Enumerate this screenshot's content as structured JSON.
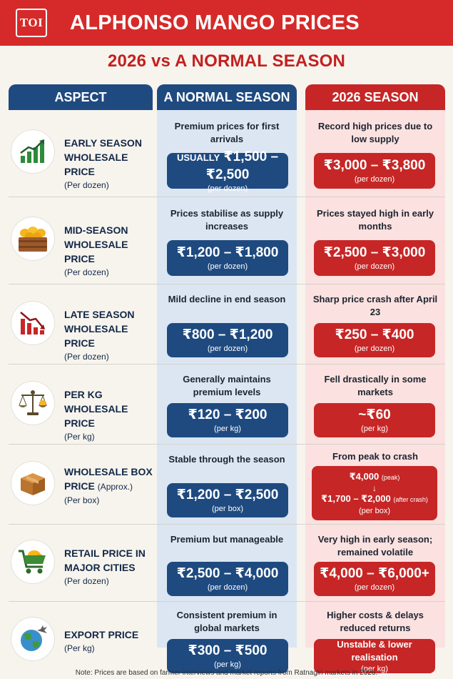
{
  "header": {
    "logo_text": "TOI",
    "title": "ALPHONSO MANGO PRICES",
    "subtitle": "2026 vs A NORMAL SEASON"
  },
  "columns": {
    "aspect": "ASPECT",
    "normal": "A NORMAL SEASON",
    "season": "2026 SEASON"
  },
  "colors": {
    "brand_red": "#d62a2a",
    "navy": "#1e4a80",
    "season_red": "#c72626"
  },
  "rows": [
    {
      "icon": "growth-chart-icon",
      "aspect_line1": "EARLY SEASON",
      "aspect_line2": "WHOLESALE PRICE",
      "aspect_unit": "(Per dozen)",
      "normal_desc": "Premium prices for first arrivals",
      "normal_prefix": "USUALLY",
      "normal_value": "₹1,500 – ₹2,500",
      "normal_unit": "(per dozen)",
      "season_desc": "Record high prices due to low supply",
      "season_value": "₹3,000 – ₹3,800",
      "season_unit": "(per dozen)"
    },
    {
      "icon": "mango-crate-icon",
      "aspect_line1": "MID-SEASON",
      "aspect_line2": "WHOLESALE PRICE",
      "aspect_unit": "(Per dozen)",
      "normal_desc": "Prices stabilise as supply increases",
      "normal_value": "₹1,200 – ₹1,800",
      "normal_unit": "(per dozen)",
      "season_desc": "Prices stayed high in early months",
      "season_value": "₹2,500 – ₹3,000",
      "season_unit": "(per dozen)"
    },
    {
      "icon": "decline-chart-icon",
      "aspect_line1": "LATE SEASON",
      "aspect_line2": "WHOLESALE PRICE",
      "aspect_unit": "(Per dozen)",
      "normal_desc": "Mild decline in end season",
      "normal_value": "₹800 – ₹1,200",
      "normal_unit": "(per dozen)",
      "season_desc": "Sharp price crash after April 23",
      "season_value": "₹250 – ₹400",
      "season_unit": "(per dozen)"
    },
    {
      "icon": "scale-icon",
      "aspect_line1": "PER KG",
      "aspect_line2": "WHOLESALE PRICE",
      "aspect_unit": "(Per kg)",
      "normal_desc": "Generally maintains premium levels",
      "normal_value": "₹120 – ₹200",
      "normal_unit": "(per kg)",
      "season_desc": "Fell drastically in some markets",
      "season_value": "~₹60",
      "season_unit": "(per kg)"
    },
    {
      "icon": "box-icon",
      "aspect_line1": "WHOLESALE BOX",
      "aspect_line2": "PRICE",
      "aspect_approx": "(Approx.)",
      "aspect_unit": "(Per box)",
      "normal_desc": "Stable through the season",
      "normal_value": "₹1,200 – ₹2,500",
      "normal_unit": "(per box)",
      "season_desc": "From peak to crash",
      "season_peak": "₹4,000",
      "season_peak_tag": "(peak)",
      "season_arrow": "↓",
      "season_crash": "₹1,700 – ₹2,000",
      "season_crash_tag": "(after crash)",
      "season_unit": "(per box)"
    },
    {
      "icon": "shopping-cart-icon",
      "aspect_line1": "RETAIL PRICE IN",
      "aspect_line2": "MAJOR CITIES",
      "aspect_unit": "(Per dozen)",
      "normal_desc": "Premium but manageable",
      "normal_value": "₹2,500 – ₹4,000",
      "normal_unit": "(per dozen)",
      "season_desc": "Very high in early season; remained volatile",
      "season_value": "₹4,000 – ₹6,000+",
      "season_unit": "(per dozen)"
    },
    {
      "icon": "globe-plane-icon",
      "aspect_line1": "EXPORT PRICE",
      "aspect_unit": "(Per kg)",
      "normal_desc": "Consistent premium in global markets",
      "normal_value": "₹300 – ₹500",
      "normal_unit": "(per kg)",
      "season_desc": "Higher costs & delays reduced returns",
      "season_value": "Unstable & lower realisation",
      "season_unit": "(per kg)"
    }
  ],
  "footer": {
    "note": "Note: Prices are based on farmer interviews and market reports from Ratnagiri markets in 2026."
  }
}
